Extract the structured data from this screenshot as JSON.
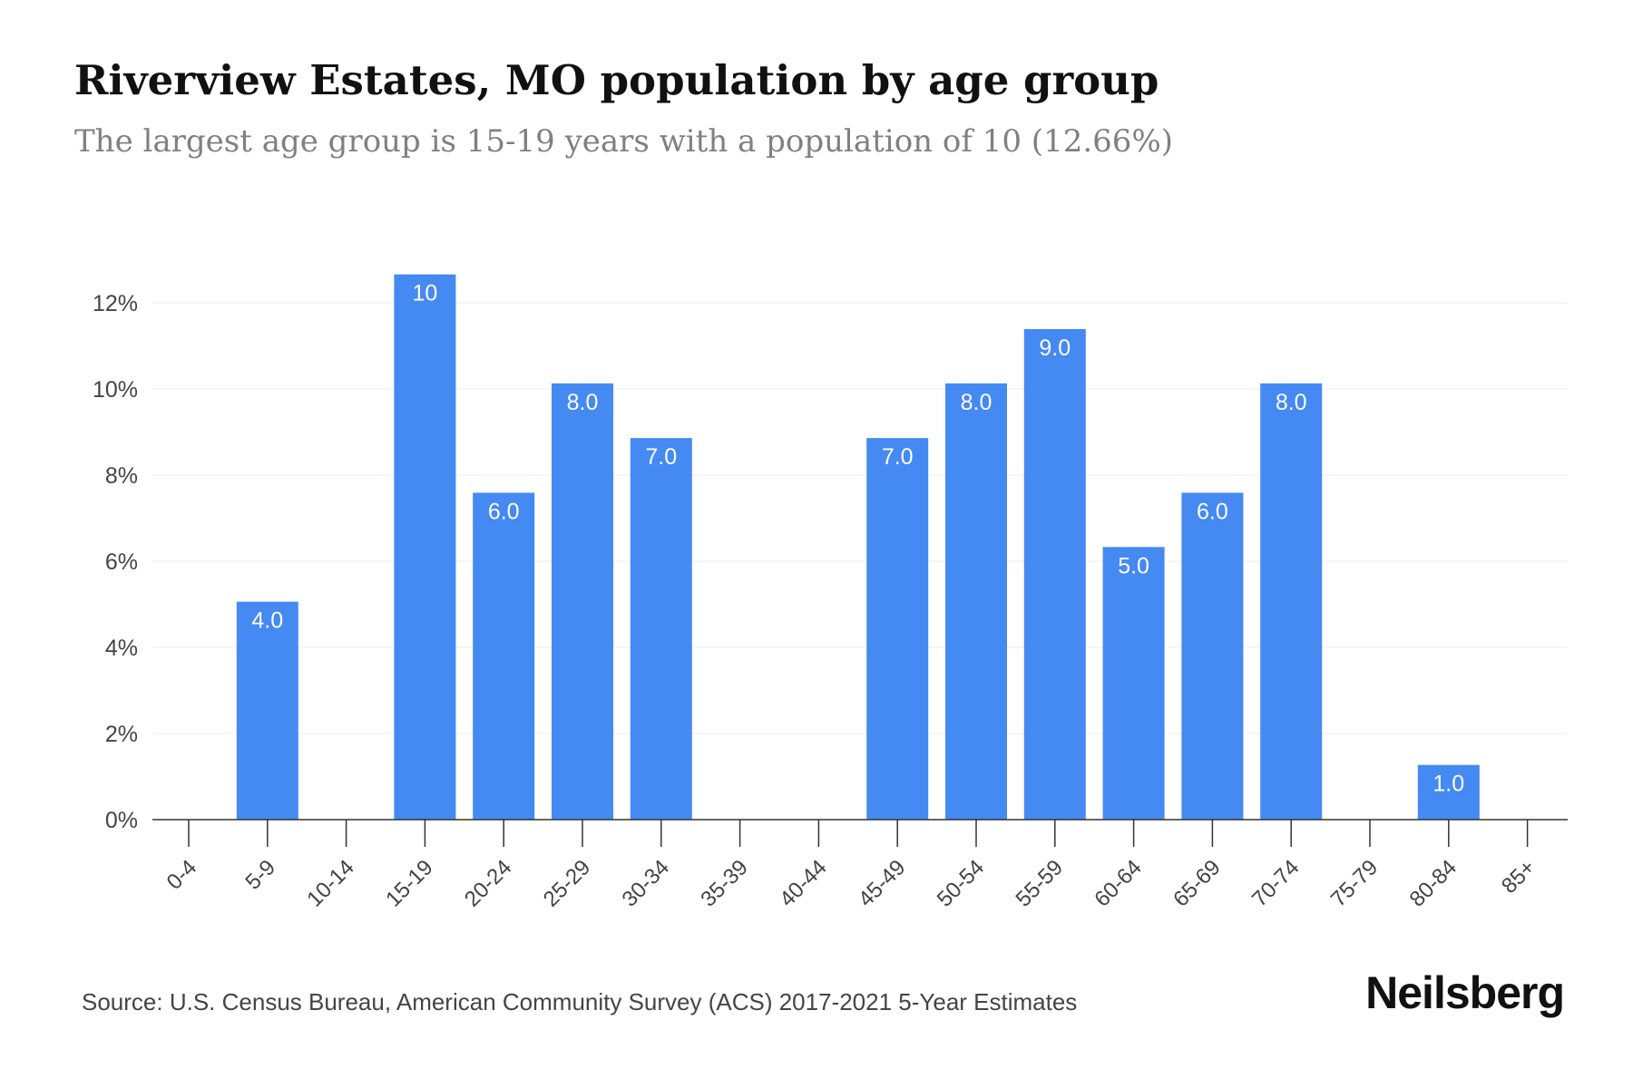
{
  "title": "Riverview Estates, MO population by age group",
  "subtitle": "The largest age group is 15-19 years with a population of 10 (12.66%)",
  "source": "Source: U.S. Census Bureau, American Community Survey (ACS) 2017-2021 5-Year Estimates",
  "brand": "Neilsberg",
  "bar_color": "#4589f3",
  "chart_data": {
    "type": "bar",
    "categories": [
      "0-4",
      "5-9",
      "10-14",
      "15-19",
      "20-24",
      "25-29",
      "30-34",
      "35-39",
      "40-44",
      "45-49",
      "50-54",
      "55-59",
      "60-64",
      "65-69",
      "70-74",
      "75-79",
      "80-84",
      "85+"
    ],
    "values": [
      0,
      5.06,
      0,
      12.66,
      7.59,
      10.13,
      8.86,
      0,
      0,
      8.86,
      10.13,
      11.39,
      6.33,
      7.59,
      10.13,
      0,
      1.27,
      0
    ],
    "data_labels": [
      "",
      "4.0",
      "",
      "10",
      "6.0",
      "8.0",
      "7.0",
      "",
      "",
      "7.0",
      "8.0",
      "9.0",
      "5.0",
      "6.0",
      "8.0",
      "",
      "1.0",
      ""
    ],
    "y_ticks": [
      "0%",
      "2%",
      "4%",
      "6%",
      "8%",
      "10%",
      "12%"
    ],
    "y_tick_values": [
      0,
      2,
      4,
      6,
      8,
      10,
      12
    ],
    "ylim": [
      0,
      12.66
    ],
    "grid": true,
    "xlabel": "",
    "ylabel": ""
  }
}
